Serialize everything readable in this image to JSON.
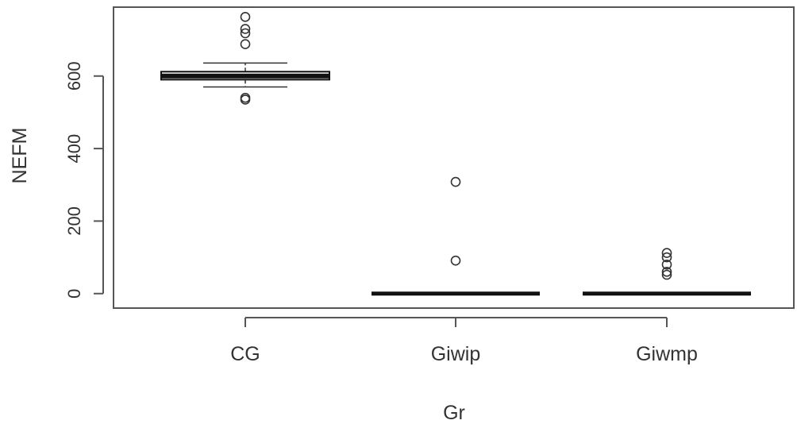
{
  "chart_data": {
    "type": "boxplot",
    "title": "",
    "xlabel": "Gr",
    "ylabel": "NEFM",
    "ylim": [
      -40,
      790
    ],
    "yticks": [
      0,
      200,
      400,
      600
    ],
    "grid": false,
    "legend": "none",
    "categories": [
      "CG",
      "Giwip",
      "Giwmp"
    ],
    "boxes": [
      {
        "category": "CG",
        "whisker_low": 570,
        "q1": 590,
        "median": 600,
        "q3": 612,
        "whisker_high": 636,
        "outliers": [
          763,
          730,
          718,
          688,
          540,
          535
        ]
      },
      {
        "category": "Giwip",
        "whisker_low": 0,
        "q1": 0,
        "median": 0,
        "q3": 0,
        "whisker_high": 0,
        "outliers": [
          308,
          91
        ]
      },
      {
        "category": "Giwmp",
        "whisker_low": 0,
        "q1": 0,
        "median": 0,
        "q3": 0,
        "whisker_high": 0,
        "outliers": [
          112,
          100,
          80,
          60,
          52
        ]
      }
    ]
  }
}
